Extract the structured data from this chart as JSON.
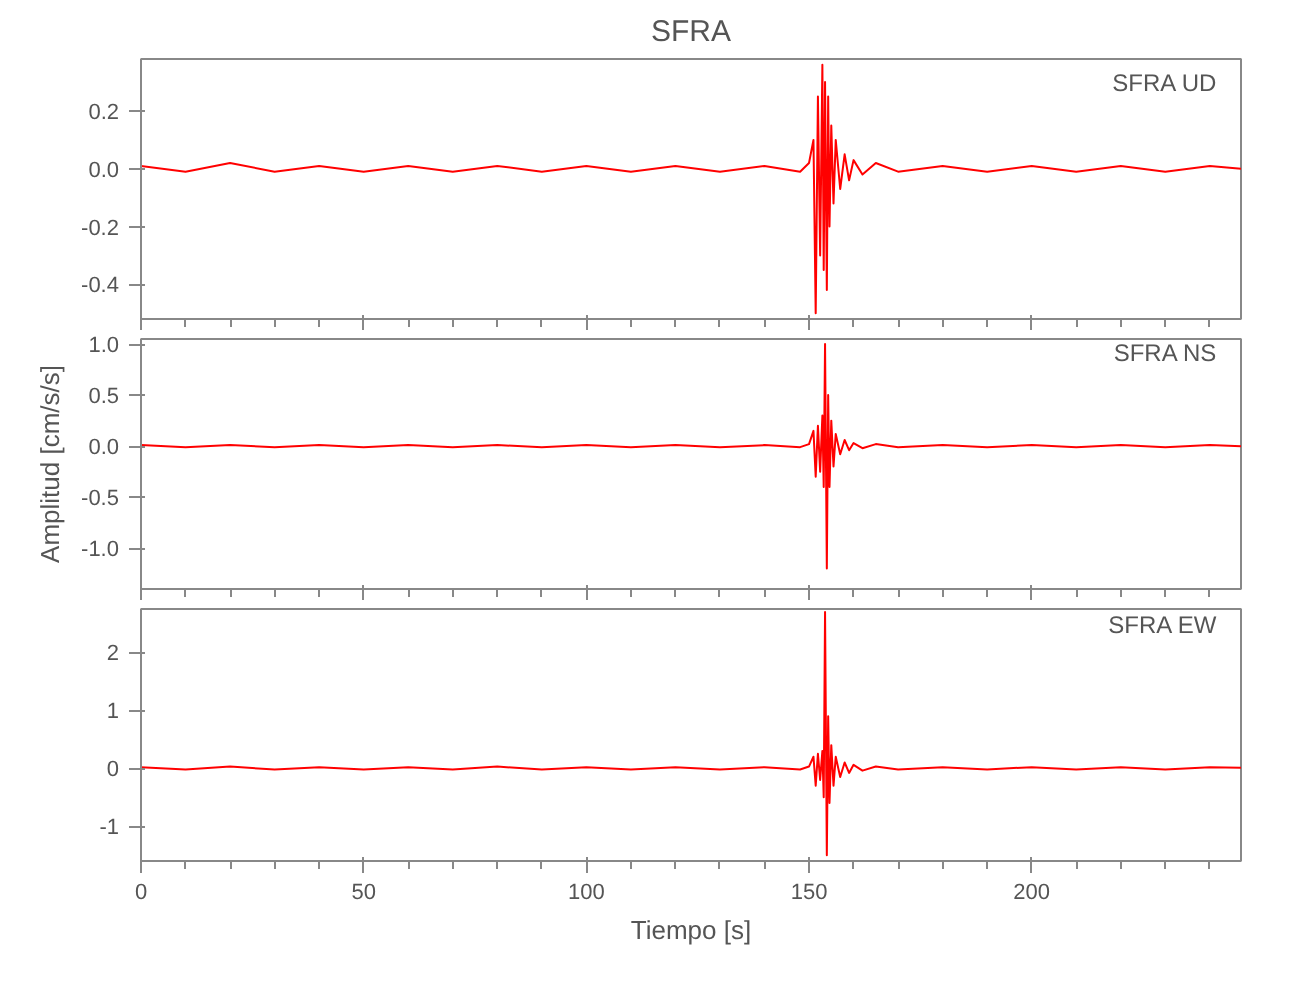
{
  "chart_data": [
    {
      "type": "line",
      "title": "SFRA",
      "annotations": [
        "SFRA   UD"
      ],
      "xlim": [
        0,
        247
      ],
      "xticks": [
        0,
        50,
        100,
        150,
        200
      ],
      "ylim": [
        -0.52,
        0.38
      ],
      "yticks": [
        {
          "value": -0.4,
          "label": "-0.4"
        },
        {
          "value": -0.2,
          "label": "-0.2"
        },
        {
          "value": 0,
          "label": "0.0"
        },
        {
          "value": 0.2,
          "label": "0.2"
        }
      ],
      "tick_labels": "y",
      "grid": false,
      "line_style": "solid",
      "x": [
        0,
        10,
        20,
        30,
        40,
        50,
        60,
        70,
        80,
        90,
        100,
        110,
        120,
        130,
        140,
        148,
        150,
        151,
        151.5,
        152,
        152.5,
        153,
        153.3,
        153.6,
        154,
        154.3,
        154.6,
        155,
        155.5,
        156,
        157,
        158,
        159,
        160,
        162,
        165,
        170,
        180,
        190,
        200,
        210,
        220,
        230,
        240,
        247
      ],
      "series": [
        {
          "color": "#ff0000",
          "values": [
            0.01,
            -0.01,
            0.02,
            -0.01,
            0.01,
            -0.01,
            0.01,
            -0.01,
            0.01,
            -0.01,
            0.01,
            -0.01,
            0.01,
            -0.01,
            0.01,
            -0.01,
            0.02,
            0.1,
            -0.5,
            0.25,
            -0.3,
            0.36,
            -0.35,
            0.3,
            -0.42,
            0.25,
            -0.2,
            0.15,
            -0.12,
            0.1,
            -0.07,
            0.05,
            -0.04,
            0.03,
            -0.02,
            0.02,
            -0.01,
            0.01,
            -0.01,
            0.01,
            -0.01,
            0.01,
            -0.01,
            0.01,
            0.0
          ]
        }
      ]
    },
    {
      "type": "line",
      "ylabel": "Amplitud [cm/s/s]",
      "annotations": [
        "SFRA   NS"
      ],
      "xlim": [
        0,
        247
      ],
      "xticks": [
        0,
        50,
        100,
        150,
        200
      ],
      "ylim": [
        -1.4,
        1.05
      ],
      "yticks": [
        {
          "value": -1,
          "label": "-1.0"
        },
        {
          "value": -0.5,
          "label": "-0.5"
        },
        {
          "value": 0,
          "label": "0.0"
        },
        {
          "value": 0.5,
          "label": "0.5"
        },
        {
          "value": 1,
          "label": "1.0"
        }
      ],
      "tick_labels": "y",
      "grid": false,
      "line_style": "solid",
      "x": [
        0,
        10,
        20,
        30,
        40,
        50,
        60,
        70,
        80,
        90,
        100,
        110,
        120,
        130,
        140,
        148,
        150,
        151,
        151.5,
        152,
        152.5,
        153,
        153.3,
        153.6,
        154,
        154.3,
        154.6,
        155,
        155.5,
        156,
        157,
        158,
        159,
        160,
        162,
        165,
        170,
        180,
        190,
        200,
        210,
        220,
        230,
        240,
        247
      ],
      "series": [
        {
          "color": "#ff0000",
          "values": [
            0.01,
            -0.01,
            0.01,
            -0.01,
            0.01,
            -0.01,
            0.01,
            -0.01,
            0.01,
            -0.01,
            0.01,
            -0.01,
            0.01,
            -0.01,
            0.01,
            -0.01,
            0.02,
            0.15,
            -0.3,
            0.2,
            -0.25,
            0.3,
            -0.4,
            1.0,
            -1.2,
            0.5,
            -0.4,
            0.25,
            -0.2,
            0.12,
            -0.08,
            0.06,
            -0.04,
            0.03,
            -0.02,
            0.02,
            -0.01,
            0.01,
            -0.01,
            0.01,
            -0.01,
            0.01,
            -0.01,
            0.01,
            0.0
          ]
        }
      ]
    },
    {
      "type": "line",
      "xlabel": "Tiempo [s]",
      "annotations": [
        "SFRA   EW"
      ],
      "xlim": [
        0,
        247
      ],
      "xticks": [
        0,
        50,
        100,
        150,
        200
      ],
      "ylim": [
        -1.6,
        2.75
      ],
      "yticks": [
        -1,
        0,
        1,
        2
      ],
      "grid": false,
      "line_style": "solid",
      "x": [
        0,
        10,
        20,
        30,
        40,
        50,
        60,
        70,
        80,
        90,
        100,
        110,
        120,
        130,
        140,
        148,
        150,
        151,
        151.5,
        152,
        152.5,
        153,
        153.3,
        153.6,
        154,
        154.3,
        154.6,
        155,
        155.5,
        156,
        157,
        158,
        159,
        160,
        162,
        165,
        170,
        180,
        190,
        200,
        210,
        220,
        230,
        240,
        247
      ],
      "series": [
        {
          "color": "#ff0000",
          "values": [
            0.02,
            -0.02,
            0.03,
            -0.02,
            0.02,
            -0.02,
            0.02,
            -0.02,
            0.03,
            -0.02,
            0.02,
            -0.02,
            0.02,
            -0.02,
            0.02,
            -0.02,
            0.03,
            0.2,
            -0.3,
            0.25,
            -0.2,
            0.3,
            -0.5,
            2.7,
            -1.5,
            0.9,
            -0.6,
            0.4,
            -0.3,
            0.2,
            -0.15,
            0.1,
            -0.08,
            0.06,
            -0.04,
            0.03,
            -0.02,
            0.02,
            -0.02,
            0.02,
            -0.02,
            0.02,
            -0.02,
            0.02,
            0.01
          ]
        }
      ]
    }
  ]
}
